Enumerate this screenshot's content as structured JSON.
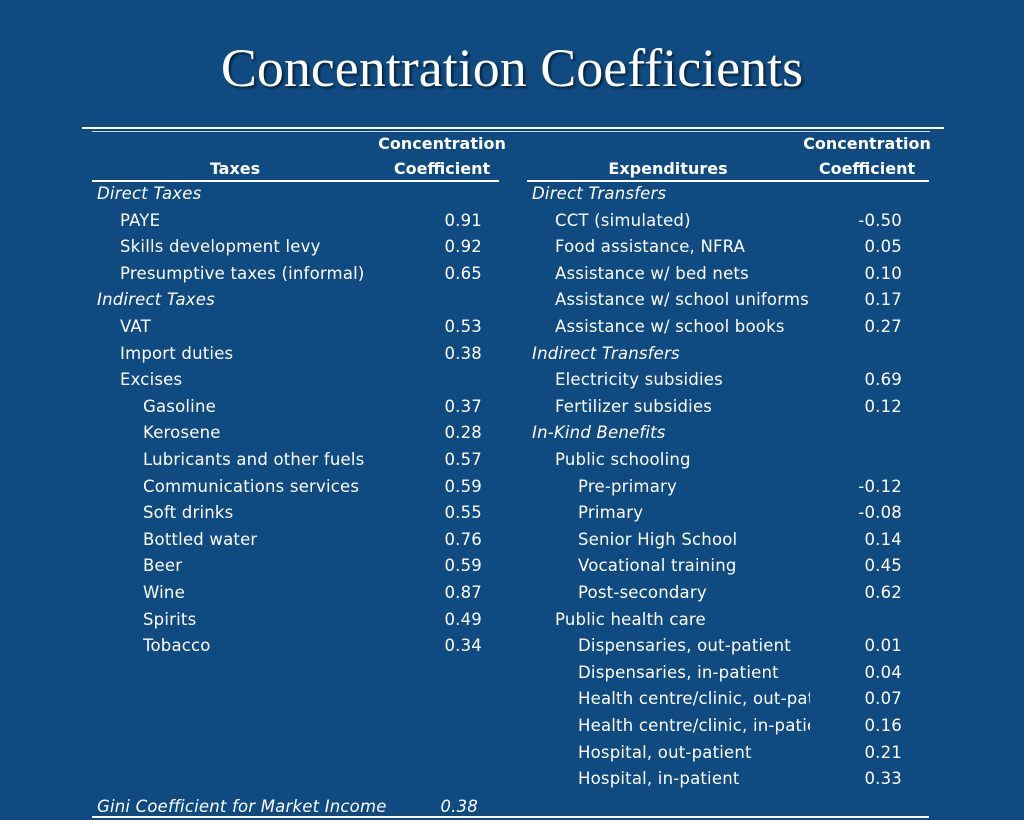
{
  "title": "Concentration Coefficients",
  "headers": {
    "taxes": "Taxes",
    "taxes_coef_1": "Concentration",
    "taxes_coef_2": "Coefficient",
    "expenditures": "Expenditures",
    "exp_coef_1": "Concentration",
    "exp_coef_2": "Coefficient"
  },
  "taxes": [
    {
      "label": "Direct Taxes",
      "value": "",
      "level": 0,
      "italic": true
    },
    {
      "label": "PAYE",
      "value": "0.91",
      "level": 1
    },
    {
      "label": "Skills development levy",
      "value": "0.92",
      "level": 1
    },
    {
      "label": "Presumptive taxes (informal)",
      "value": "0.65",
      "level": 1
    },
    {
      "label": "Indirect Taxes",
      "value": "",
      "level": 0,
      "italic": true
    },
    {
      "label": "VAT",
      "value": "0.53",
      "level": 1
    },
    {
      "label": "Import duties",
      "value": "0.38",
      "level": 1
    },
    {
      "label": "Excises",
      "value": "",
      "level": 1
    },
    {
      "label": "Gasoline",
      "value": "0.37",
      "level": 2
    },
    {
      "label": "Kerosene",
      "value": "0.28",
      "level": 2
    },
    {
      "label": "Lubricants and other fuels",
      "value": "0.57",
      "level": 2
    },
    {
      "label": "Communications services",
      "value": "0.59",
      "level": 2
    },
    {
      "label": "Soft drinks",
      "value": "0.55",
      "level": 2
    },
    {
      "label": "Bottled water",
      "value": "0.76",
      "level": 2
    },
    {
      "label": "Beer",
      "value": "0.59",
      "level": 2
    },
    {
      "label": "Wine",
      "value": "0.87",
      "level": 2
    },
    {
      "label": "Spirits",
      "value": "0.49",
      "level": 2
    },
    {
      "label": "Tobacco",
      "value": "0.34",
      "level": 2
    }
  ],
  "expenditures": [
    {
      "label": "Direct Transfers",
      "value": "",
      "level": 0,
      "italic": true
    },
    {
      "label": "CCT (simulated)",
      "value": "-0.50",
      "level": 1
    },
    {
      "label": "Food assistance, NFRA",
      "value": "0.05",
      "level": 1
    },
    {
      "label": "Assistance w/ bed nets",
      "value": "0.10",
      "level": 1
    },
    {
      "label": "Assistance w/ school uniforms",
      "value": "0.17",
      "level": 1
    },
    {
      "label": "Assistance w/ school books",
      "value": "0.27",
      "level": 1
    },
    {
      "label": "Indirect Transfers",
      "value": "",
      "level": 0,
      "italic": true
    },
    {
      "label": "Electricity subsidies",
      "value": "0.69",
      "level": 1
    },
    {
      "label": "Fertilizer subsidies",
      "value": "0.12",
      "level": 1
    },
    {
      "label": "In-Kind Benefits",
      "value": "",
      "level": 0,
      "italic": true
    },
    {
      "label": "Public schooling",
      "value": "",
      "level": 1
    },
    {
      "label": "Pre-primary",
      "value": "-0.12",
      "level": 2
    },
    {
      "label": "Primary",
      "value": "-0.08",
      "level": 2
    },
    {
      "label": "Senior High School",
      "value": "0.14",
      "level": 2
    },
    {
      "label": "Vocational training",
      "value": "0.45",
      "level": 2
    },
    {
      "label": "Post-secondary",
      "value": "0.62",
      "level": 2
    },
    {
      "label": "Public health care",
      "value": "",
      "level": 1
    },
    {
      "label": "Dispensaries, out-patient",
      "value": "0.01",
      "level": 2
    },
    {
      "label": "Dispensaries, in-patient",
      "value": "0.04",
      "level": 2
    },
    {
      "label": "Health centre/clinic, out-patient",
      "value": "0.07",
      "level": 2
    },
    {
      "label": "Health centre/clinic, in-patient",
      "value": "0.16",
      "level": 2
    },
    {
      "label": "Hospital, out-patient",
      "value": "0.21",
      "level": 2
    },
    {
      "label": "Hospital, in-patient",
      "value": "0.33",
      "level": 2
    }
  ],
  "footer": {
    "label": "Gini Coefficient for Market Income",
    "value": "0.38"
  }
}
